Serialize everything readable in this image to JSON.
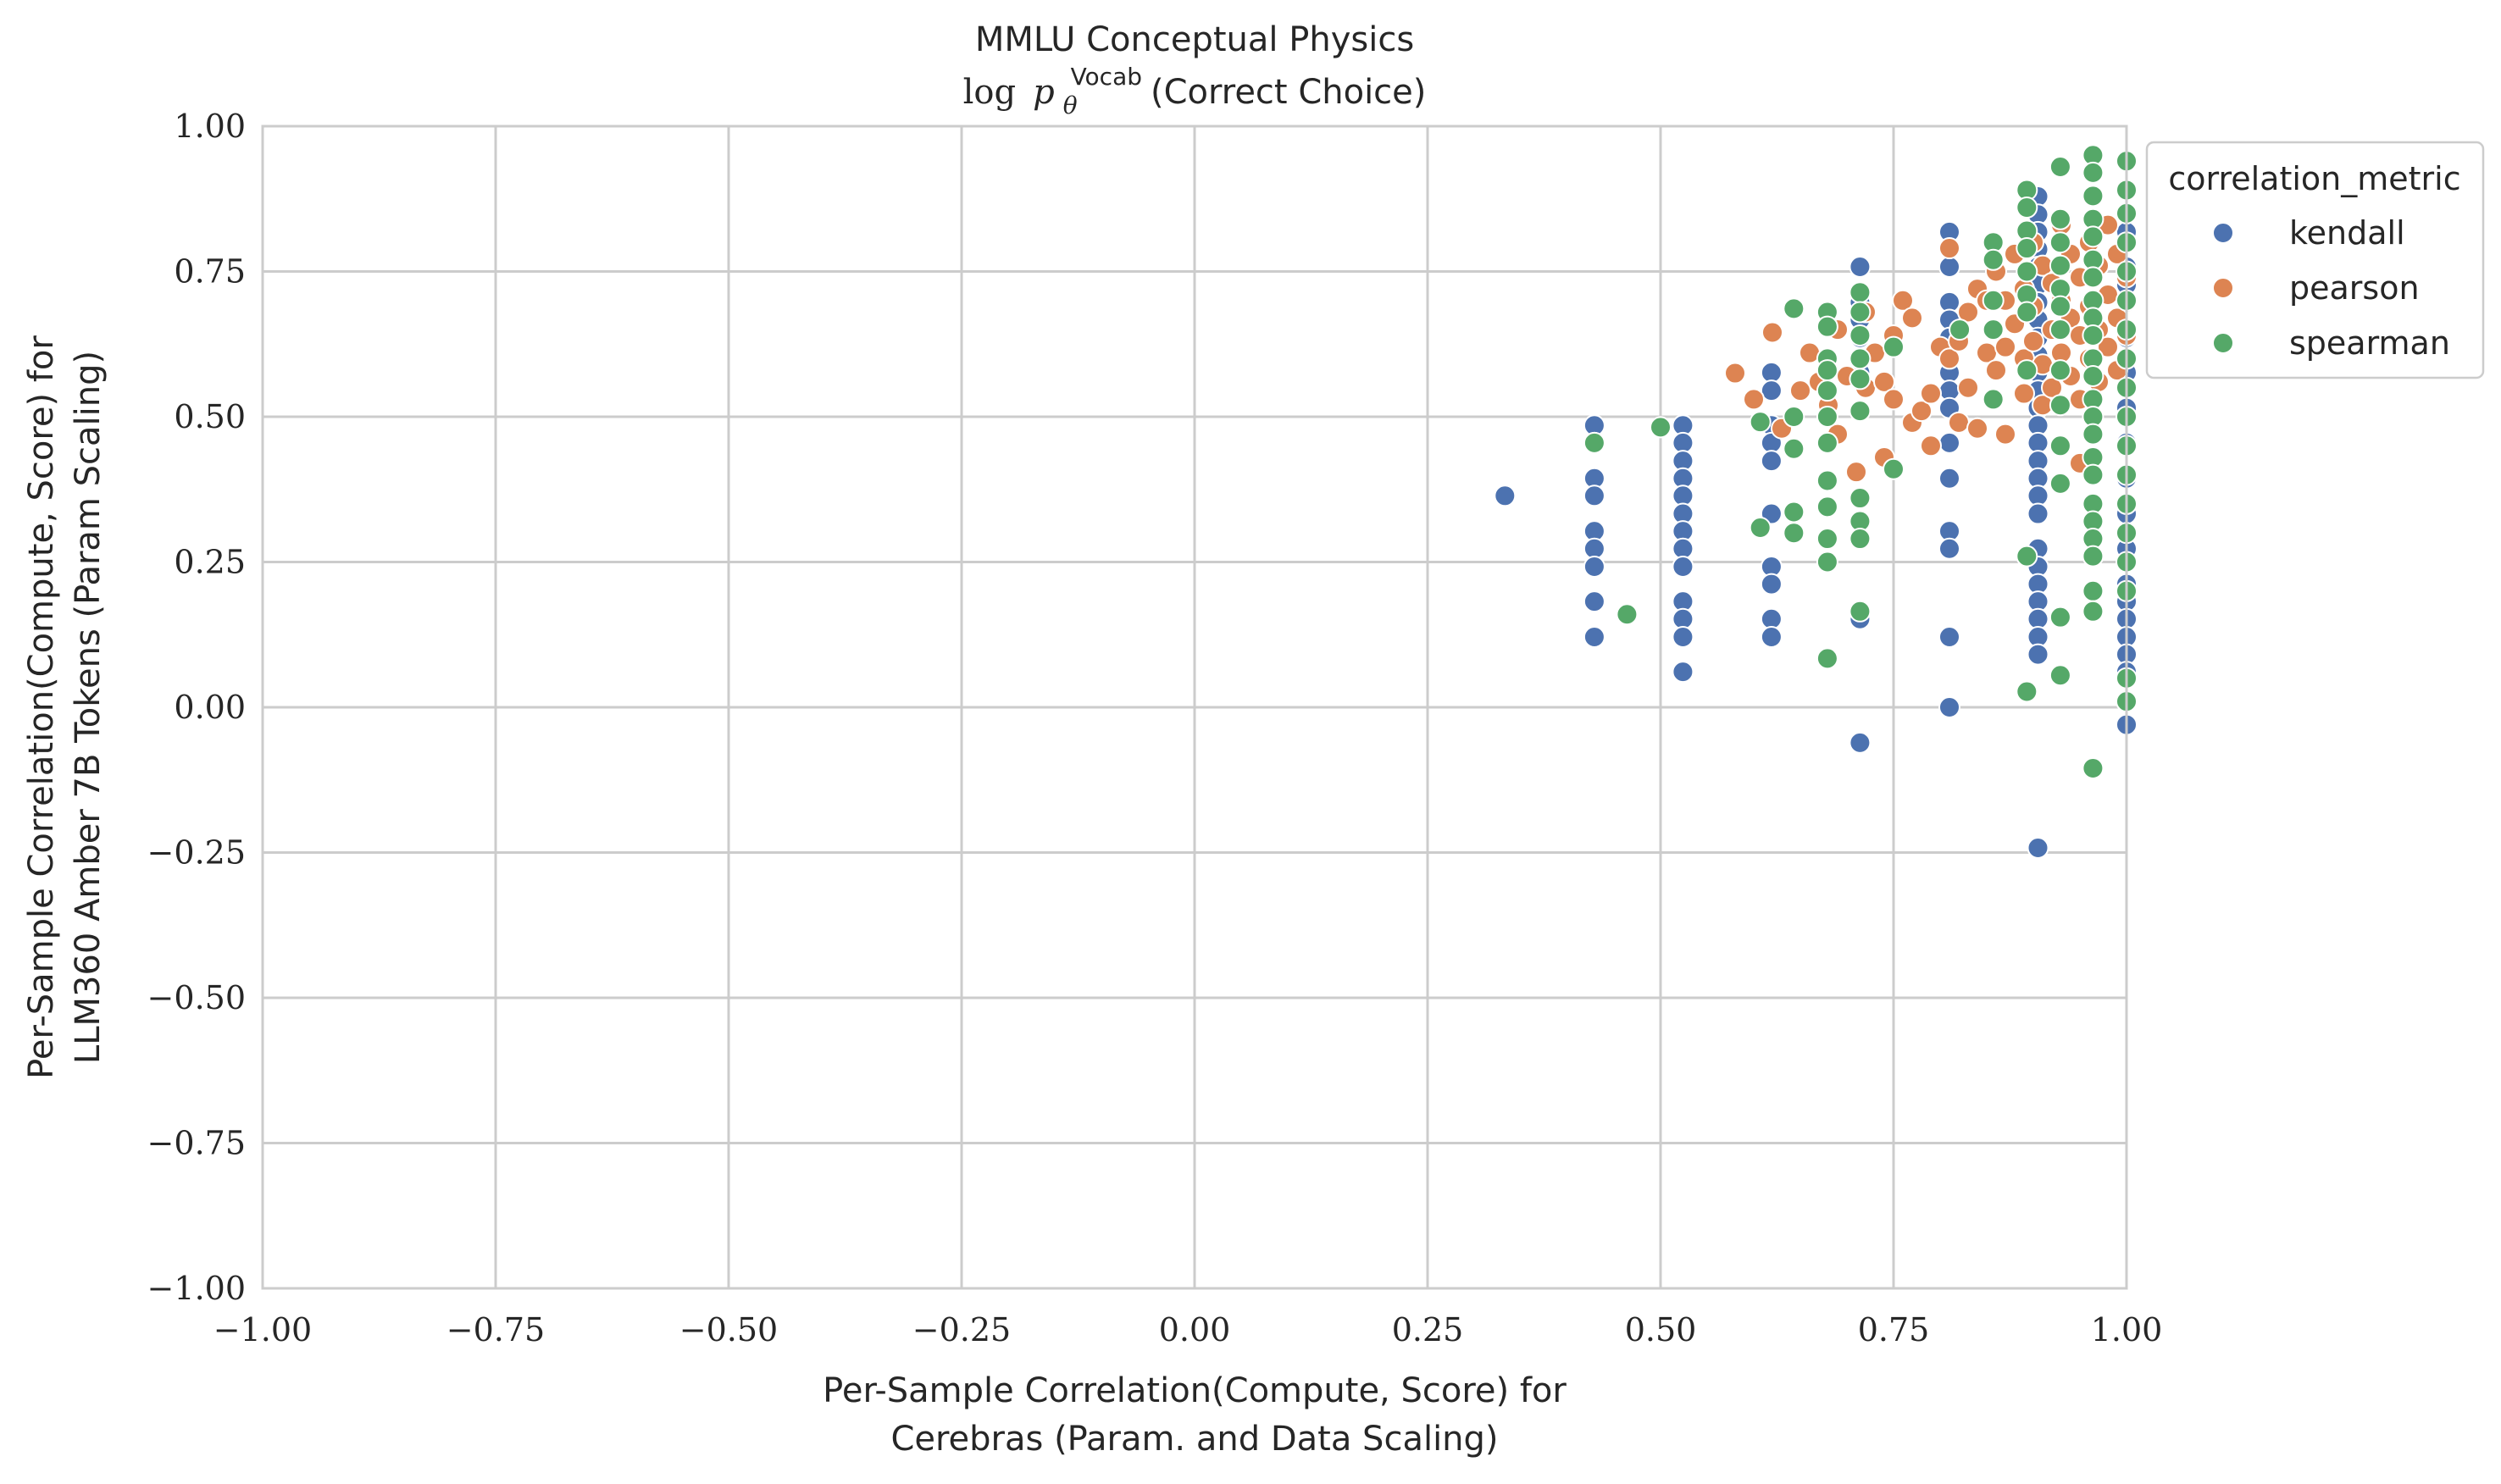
{
  "chart_data": {
    "type": "scatter",
    "title_line1": "MMLU Conceptual Physics",
    "title_line2_prefix": "log",
    "title_line2_p": "p",
    "title_line2_sub": "θ",
    "title_line2_sup": "Vocab",
    "title_line2_suffix": "(Correct Choice)",
    "xlabel_line1": "Per-Sample Correlation(Compute, Score) for",
    "xlabel_line2": "Cerebras (Param. and Data Scaling)",
    "ylabel_line1": "Per-Sample Correlation(Compute, Score) for",
    "ylabel_line2": "LLM360 Amber 7B Tokens (Param Scaling)",
    "xlim": [
      -1.0,
      1.0
    ],
    "ylim": [
      -1.0,
      1.0
    ],
    "xticks": [
      -1.0,
      -0.75,
      -0.5,
      -0.25,
      0.0,
      0.25,
      0.5,
      0.75,
      1.0
    ],
    "yticks": [
      -1.0,
      -0.75,
      -0.5,
      -0.25,
      0.0,
      0.25,
      0.5,
      0.75,
      1.0
    ],
    "xtick_labels": [
      "−1.00",
      "−0.75",
      "−0.50",
      "−0.25",
      "0.00",
      "0.25",
      "0.50",
      "0.75",
      "1.00"
    ],
    "ytick_labels": [
      "−1.00",
      "−0.75",
      "−0.50",
      "−0.25",
      "0.00",
      "0.25",
      "0.50",
      "0.75",
      "1.00"
    ],
    "grid": true,
    "legend": {
      "title": "correlation_metric",
      "placement": "outside-top-right"
    },
    "series": [
      {
        "name": "kendall",
        "color": "#4c72b0",
        "points": [
          [
            0.333,
            0.364
          ],
          [
            0.429,
            0.485
          ],
          [
            0.429,
            0.455
          ],
          [
            0.429,
            0.394
          ],
          [
            0.429,
            0.364
          ],
          [
            0.429,
            0.303
          ],
          [
            0.429,
            0.273
          ],
          [
            0.429,
            0.242
          ],
          [
            0.429,
            0.182
          ],
          [
            0.429,
            0.121
          ],
          [
            0.524,
            0.485
          ],
          [
            0.524,
            0.455
          ],
          [
            0.524,
            0.424
          ],
          [
            0.524,
            0.394
          ],
          [
            0.524,
            0.364
          ],
          [
            0.524,
            0.333
          ],
          [
            0.524,
            0.303
          ],
          [
            0.524,
            0.273
          ],
          [
            0.524,
            0.242
          ],
          [
            0.524,
            0.182
          ],
          [
            0.524,
            0.152
          ],
          [
            0.524,
            0.121
          ],
          [
            0.524,
            0.061
          ],
          [
            0.619,
            0.576
          ],
          [
            0.619,
            0.545
          ],
          [
            0.619,
            0.485
          ],
          [
            0.619,
            0.455
          ],
          [
            0.619,
            0.424
          ],
          [
            0.619,
            0.333
          ],
          [
            0.619,
            0.242
          ],
          [
            0.619,
            0.212
          ],
          [
            0.619,
            0.152
          ],
          [
            0.619,
            0.121
          ],
          [
            0.714,
            0.758
          ],
          [
            0.714,
            0.697
          ],
          [
            0.714,
            0.667
          ],
          [
            0.714,
            0.636
          ],
          [
            0.714,
            0.576
          ],
          [
            0.714,
            0.152
          ],
          [
            0.714,
            -0.061
          ],
          [
            0.81,
            0.818
          ],
          [
            0.81,
            0.758
          ],
          [
            0.81,
            0.697
          ],
          [
            0.81,
            0.667
          ],
          [
            0.81,
            0.636
          ],
          [
            0.81,
            0.606
          ],
          [
            0.81,
            0.576
          ],
          [
            0.81,
            0.545
          ],
          [
            0.81,
            0.515
          ],
          [
            0.81,
            0.455
          ],
          [
            0.81,
            0.394
          ],
          [
            0.81,
            0.303
          ],
          [
            0.81,
            0.273
          ],
          [
            0.81,
            0.121
          ],
          [
            0.81,
            0.0
          ],
          [
            0.905,
            0.879
          ],
          [
            0.905,
            0.848
          ],
          [
            0.905,
            0.818
          ],
          [
            0.905,
            0.788
          ],
          [
            0.905,
            0.758
          ],
          [
            0.905,
            0.727
          ],
          [
            0.905,
            0.697
          ],
          [
            0.905,
            0.667
          ],
          [
            0.905,
            0.636
          ],
          [
            0.905,
            0.606
          ],
          [
            0.905,
            0.576
          ],
          [
            0.905,
            0.545
          ],
          [
            0.905,
            0.515
          ],
          [
            0.905,
            0.485
          ],
          [
            0.905,
            0.455
          ],
          [
            0.905,
            0.424
          ],
          [
            0.905,
            0.394
          ],
          [
            0.905,
            0.364
          ],
          [
            0.905,
            0.333
          ],
          [
            0.905,
            0.273
          ],
          [
            0.905,
            0.242
          ],
          [
            0.905,
            0.212
          ],
          [
            0.905,
            0.182
          ],
          [
            0.905,
            0.152
          ],
          [
            0.905,
            0.121
          ],
          [
            0.905,
            0.091
          ],
          [
            0.905,
            -0.242
          ],
          [
            1.0,
            0.818
          ],
          [
            1.0,
            0.758
          ],
          [
            1.0,
            0.727
          ],
          [
            1.0,
            0.697
          ],
          [
            1.0,
            0.636
          ],
          [
            1.0,
            0.576
          ],
          [
            1.0,
            0.515
          ],
          [
            1.0,
            0.455
          ],
          [
            1.0,
            0.394
          ],
          [
            1.0,
            0.333
          ],
          [
            1.0,
            0.273
          ],
          [
            1.0,
            0.212
          ],
          [
            1.0,
            0.182
          ],
          [
            1.0,
            0.152
          ],
          [
            1.0,
            0.121
          ],
          [
            1.0,
            0.091
          ],
          [
            1.0,
            0.061
          ],
          [
            1.0,
            -0.03
          ]
        ]
      },
      {
        "name": "pearson",
        "color": "#dd8452",
        "points": [
          [
            0.58,
            0.575
          ],
          [
            0.6,
            0.53
          ],
          [
            0.62,
            0.645
          ],
          [
            0.63,
            0.48
          ],
          [
            0.65,
            0.545
          ],
          [
            0.66,
            0.61
          ],
          [
            0.67,
            0.56
          ],
          [
            0.68,
            0.52
          ],
          [
            0.68,
            0.39
          ],
          [
            0.69,
            0.65
          ],
          [
            0.69,
            0.47
          ],
          [
            0.7,
            0.57
          ],
          [
            0.71,
            0.405
          ],
          [
            0.72,
            0.68
          ],
          [
            0.72,
            0.55
          ],
          [
            0.73,
            0.61
          ],
          [
            0.74,
            0.56
          ],
          [
            0.74,
            0.43
          ],
          [
            0.75,
            0.64
          ],
          [
            0.75,
            0.53
          ],
          [
            0.76,
            0.7
          ],
          [
            0.77,
            0.67
          ],
          [
            0.77,
            0.49
          ],
          [
            0.78,
            0.51
          ],
          [
            0.79,
            0.54
          ],
          [
            0.79,
            0.45
          ],
          [
            0.8,
            0.62
          ],
          [
            0.81,
            0.79
          ],
          [
            0.81,
            0.6
          ],
          [
            0.82,
            0.63
          ],
          [
            0.82,
            0.49
          ],
          [
            0.83,
            0.68
          ],
          [
            0.83,
            0.55
          ],
          [
            0.84,
            0.72
          ],
          [
            0.84,
            0.48
          ],
          [
            0.85,
            0.61
          ],
          [
            0.85,
            0.7
          ],
          [
            0.86,
            0.75
          ],
          [
            0.86,
            0.58
          ],
          [
            0.87,
            0.7
          ],
          [
            0.87,
            0.62
          ],
          [
            0.87,
            0.47
          ],
          [
            0.88,
            0.78
          ],
          [
            0.88,
            0.66
          ],
          [
            0.89,
            0.72
          ],
          [
            0.89,
            0.6
          ],
          [
            0.89,
            0.54
          ],
          [
            0.9,
            0.8
          ],
          [
            0.9,
            0.69
          ],
          [
            0.9,
            0.63
          ],
          [
            0.91,
            0.76
          ],
          [
            0.91,
            0.59
          ],
          [
            0.91,
            0.52
          ],
          [
            0.92,
            0.73
          ],
          [
            0.92,
            0.65
          ],
          [
            0.92,
            0.55
          ],
          [
            0.93,
            0.83
          ],
          [
            0.93,
            0.7
          ],
          [
            0.93,
            0.61
          ],
          [
            0.94,
            0.78
          ],
          [
            0.94,
            0.67
          ],
          [
            0.94,
            0.57
          ],
          [
            0.95,
            0.74
          ],
          [
            0.95,
            0.64
          ],
          [
            0.95,
            0.53
          ],
          [
            0.95,
            0.42
          ],
          [
            0.96,
            0.8
          ],
          [
            0.96,
            0.69
          ],
          [
            0.96,
            0.6
          ],
          [
            0.97,
            0.76
          ],
          [
            0.97,
            0.65
          ],
          [
            0.97,
            0.56
          ],
          [
            0.98,
            0.83
          ],
          [
            0.98,
            0.71
          ],
          [
            0.98,
            0.62
          ],
          [
            0.99,
            0.78
          ],
          [
            0.99,
            0.67
          ],
          [
            0.99,
            0.58
          ],
          [
            1.0,
            0.74
          ],
          [
            1.0,
            0.64
          ]
        ]
      },
      {
        "name": "spearman",
        "color": "#55a868",
        "points": [
          [
            0.429,
            0.455
          ],
          [
            0.464,
            0.16
          ],
          [
            0.5,
            0.482
          ],
          [
            0.607,
            0.491
          ],
          [
            0.607,
            0.309
          ],
          [
            0.643,
            0.686
          ],
          [
            0.643,
            0.5
          ],
          [
            0.643,
            0.445
          ],
          [
            0.643,
            0.336
          ],
          [
            0.643,
            0.3
          ],
          [
            0.679,
            0.68
          ],
          [
            0.679,
            0.655
          ],
          [
            0.679,
            0.6
          ],
          [
            0.679,
            0.58
          ],
          [
            0.679,
            0.545
          ],
          [
            0.679,
            0.5
          ],
          [
            0.679,
            0.455
          ],
          [
            0.679,
            0.39
          ],
          [
            0.679,
            0.345
          ],
          [
            0.679,
            0.29
          ],
          [
            0.679,
            0.25
          ],
          [
            0.679,
            0.084
          ],
          [
            0.714,
            0.714
          ],
          [
            0.714,
            0.68
          ],
          [
            0.714,
            0.64
          ],
          [
            0.714,
            0.6
          ],
          [
            0.714,
            0.565
          ],
          [
            0.714,
            0.51
          ],
          [
            0.714,
            0.36
          ],
          [
            0.714,
            0.32
          ],
          [
            0.714,
            0.29
          ],
          [
            0.714,
            0.165
          ],
          [
            0.75,
            0.62
          ],
          [
            0.75,
            0.41
          ],
          [
            0.821,
            0.65
          ],
          [
            0.857,
            0.8
          ],
          [
            0.857,
            0.77
          ],
          [
            0.857,
            0.7
          ],
          [
            0.857,
            0.65
          ],
          [
            0.857,
            0.53
          ],
          [
            0.893,
            0.89
          ],
          [
            0.893,
            0.86
          ],
          [
            0.893,
            0.82
          ],
          [
            0.893,
            0.79
          ],
          [
            0.893,
            0.75
          ],
          [
            0.893,
            0.71
          ],
          [
            0.893,
            0.68
          ],
          [
            0.893,
            0.58
          ],
          [
            0.893,
            0.26
          ],
          [
            0.893,
            0.027
          ],
          [
            0.929,
            0.93
          ],
          [
            0.929,
            0.84
          ],
          [
            0.929,
            0.8
          ],
          [
            0.929,
            0.76
          ],
          [
            0.929,
            0.72
          ],
          [
            0.929,
            0.69
          ],
          [
            0.929,
            0.65
          ],
          [
            0.929,
            0.58
          ],
          [
            0.929,
            0.52
          ],
          [
            0.929,
            0.45
          ],
          [
            0.929,
            0.385
          ],
          [
            0.929,
            0.155
          ],
          [
            0.929,
            0.055
          ],
          [
            0.964,
            0.95
          ],
          [
            0.964,
            0.92
          ],
          [
            0.964,
            0.88
          ],
          [
            0.964,
            0.84
          ],
          [
            0.964,
            0.81
          ],
          [
            0.964,
            0.77
          ],
          [
            0.964,
            0.74
          ],
          [
            0.964,
            0.7
          ],
          [
            0.964,
            0.67
          ],
          [
            0.964,
            0.64
          ],
          [
            0.964,
            0.6
          ],
          [
            0.964,
            0.57
          ],
          [
            0.964,
            0.53
          ],
          [
            0.964,
            0.5
          ],
          [
            0.964,
            0.47
          ],
          [
            0.964,
            0.43
          ],
          [
            0.964,
            0.4
          ],
          [
            0.964,
            0.35
          ],
          [
            0.964,
            0.32
          ],
          [
            0.964,
            0.29
          ],
          [
            0.964,
            0.26
          ],
          [
            0.964,
            0.2
          ],
          [
            0.964,
            0.165
          ],
          [
            0.964,
            -0.105
          ],
          [
            1.0,
            0.94
          ],
          [
            1.0,
            0.89
          ],
          [
            1.0,
            0.85
          ],
          [
            1.0,
            0.8
          ],
          [
            1.0,
            0.75
          ],
          [
            1.0,
            0.7
          ],
          [
            1.0,
            0.65
          ],
          [
            1.0,
            0.6
          ],
          [
            1.0,
            0.55
          ],
          [
            1.0,
            0.5
          ],
          [
            1.0,
            0.45
          ],
          [
            1.0,
            0.4
          ],
          [
            1.0,
            0.35
          ],
          [
            1.0,
            0.3
          ],
          [
            1.0,
            0.25
          ],
          [
            1.0,
            0.2
          ],
          [
            1.0,
            0.05
          ],
          [
            1.0,
            0.01
          ]
        ]
      }
    ]
  }
}
